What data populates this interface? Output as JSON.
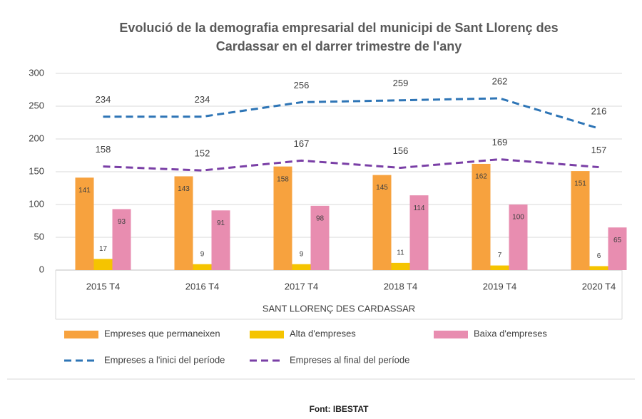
{
  "chart_data": {
    "type": "bar_line",
    "title": [
      "Evolució de la demografia empresarial del municipi de Sant Llorenç des",
      "Cardassar en el darrer trimestre de l'any"
    ],
    "xlabel": "SANT LLORENÇ DES CARDASSAR",
    "source": "Font: IBESTAT",
    "categories": [
      "2015 T4",
      "2016 T4",
      "2017 T4",
      "2018 T4",
      "2019 T4",
      "2020 T4"
    ],
    "ylim": [
      0,
      300
    ],
    "yticks": [
      0,
      50,
      100,
      150,
      200,
      250,
      300
    ],
    "grid": true,
    "legend": "bottom",
    "series": [
      {
        "name": "Empreses que permaneixen",
        "kind": "bar",
        "color": "#f7a23e",
        "values": [
          141,
          143,
          158,
          145,
          162,
          151
        ]
      },
      {
        "name": "Alta d'empreses",
        "kind": "bar",
        "color": "#f5c400",
        "values": [
          17,
          9,
          9,
          11,
          7,
          6
        ]
      },
      {
        "name": "Baixa d'empreses",
        "kind": "bar",
        "color": "#e88db0",
        "values": [
          93,
          91,
          98,
          114,
          100,
          65
        ]
      },
      {
        "name": "Empreses a l'inici del període",
        "kind": "line",
        "color": "#2e75b6",
        "values": [
          234,
          234,
          256,
          259,
          262,
          216
        ]
      },
      {
        "name": "Empreses al final del període",
        "kind": "line",
        "color": "#7a3fa6",
        "values": [
          158,
          152,
          167,
          156,
          169,
          157
        ]
      }
    ]
  }
}
